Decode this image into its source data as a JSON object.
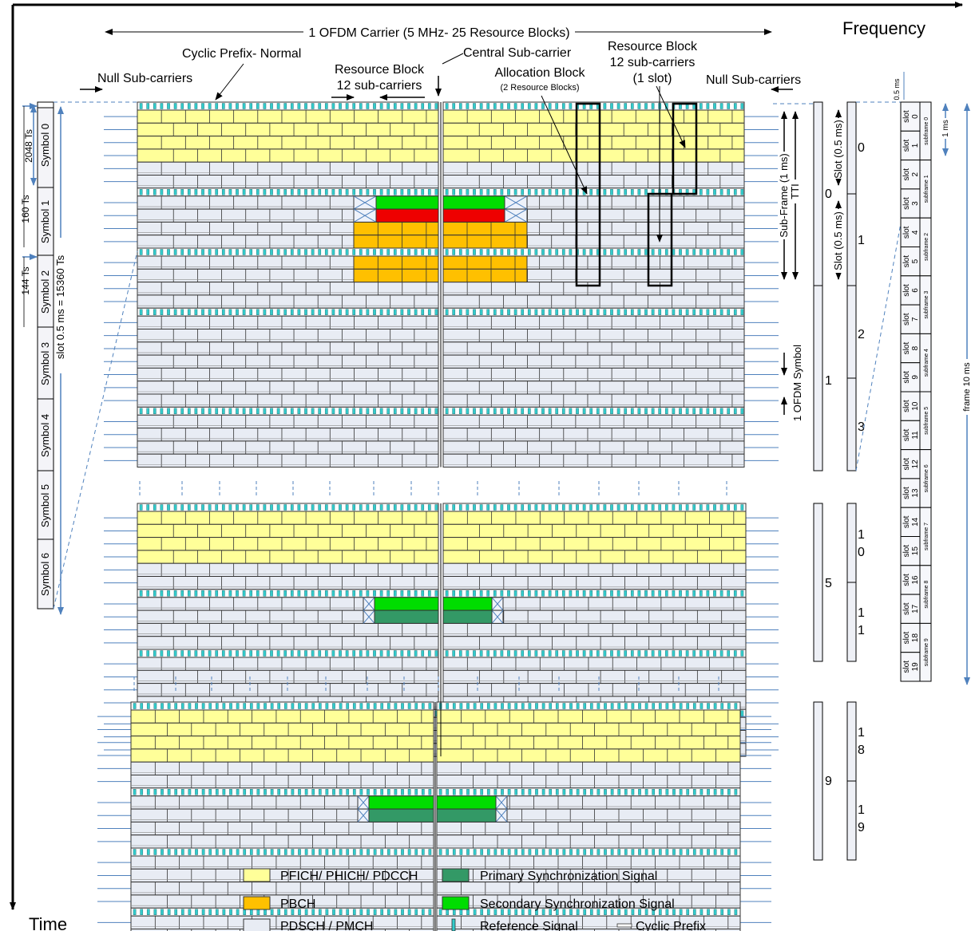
{
  "axes": {
    "frequency": "Frequency",
    "time": "Time"
  },
  "header": {
    "carrier": "1 OFDM Carrier (5 MHz- 25 Resource Blocks)",
    "cyclic_prefix": "Cyclic Prefix- Normal",
    "null_left": "Null Sub-carriers",
    "null_right": "Null Sub-carriers",
    "rb_line1": "Resource Block",
    "rb_line2": "12 sub-carriers",
    "central": "Central Sub-carrier",
    "alloc_line1": "Allocation Block",
    "alloc_line2": "(2 Resource Blocks)",
    "rb2_line1": "Resource Block",
    "rb2_line2": "12 sub-carriers",
    "rb2_line3": "(1 slot)"
  },
  "slot_column": {
    "symbols": [
      "Symbol 0",
      "Symbol 1",
      "Symbol 2",
      "Symbol 3",
      "Symbol 4",
      "Symbol 5",
      "Symbol 6"
    ],
    "ts_2048": "2048 Ts",
    "ts_160": "160 Ts",
    "ts_144": "144 Ts",
    "slot_duration": "slot 0.5 ms = 15360 Ts"
  },
  "right_labels": {
    "subframe": "Sub-Frame (1 ms)",
    "tti": "TTI",
    "slot_a": "Slot (0.5 ms)",
    "slot_b": "Slot (0.5 ms)",
    "ofdm_symbol": "1 OFDM Symbol"
  },
  "subframe_numbers": [
    "0",
    "1",
    "5",
    "9"
  ],
  "slot_numbers": [
    "0",
    "1",
    "2",
    "3",
    "1",
    "0",
    "1",
    "1",
    "1",
    "8",
    "1",
    "9"
  ],
  "frame_table": {
    "slot_label": "slot",
    "slots": [
      "0",
      "1",
      "2",
      "3",
      "4",
      "5",
      "6",
      "7",
      "8",
      "9",
      "10",
      "11",
      "12",
      "13",
      "14",
      "15",
      "16",
      "17",
      "18",
      "19"
    ],
    "subframes": [
      "subframe 0",
      "subframe 1",
      "subframe 2",
      "subframe 3",
      "subframe 4",
      "subframe 5",
      "subframe 6",
      "subframe 7",
      "subframe 8",
      "subframe 9"
    ],
    "half_ms": "0.5 ms",
    "one_ms": "1 ms",
    "frame": "frame 10 ms"
  },
  "legend": {
    "pdcch": "PFICH/ PHICH/ PDCCH",
    "pbch": "PBCH",
    "pdsch": "PDSCH / PMCH",
    "pss": "Primary Synchronization Signal",
    "sss": "Secondary Synchronization Signal",
    "rs": "Reference Signal",
    "cp": "Cyclic Prefix"
  },
  "colors": {
    "pdcch": "#ffff99",
    "pbch": "#ffc000",
    "pdsch": "#e8ecf4",
    "pss": "#339966",
    "sss": "#00dd00",
    "rs": "#33cccc",
    "red": "#ee0000",
    "line": "#4f81bd"
  }
}
